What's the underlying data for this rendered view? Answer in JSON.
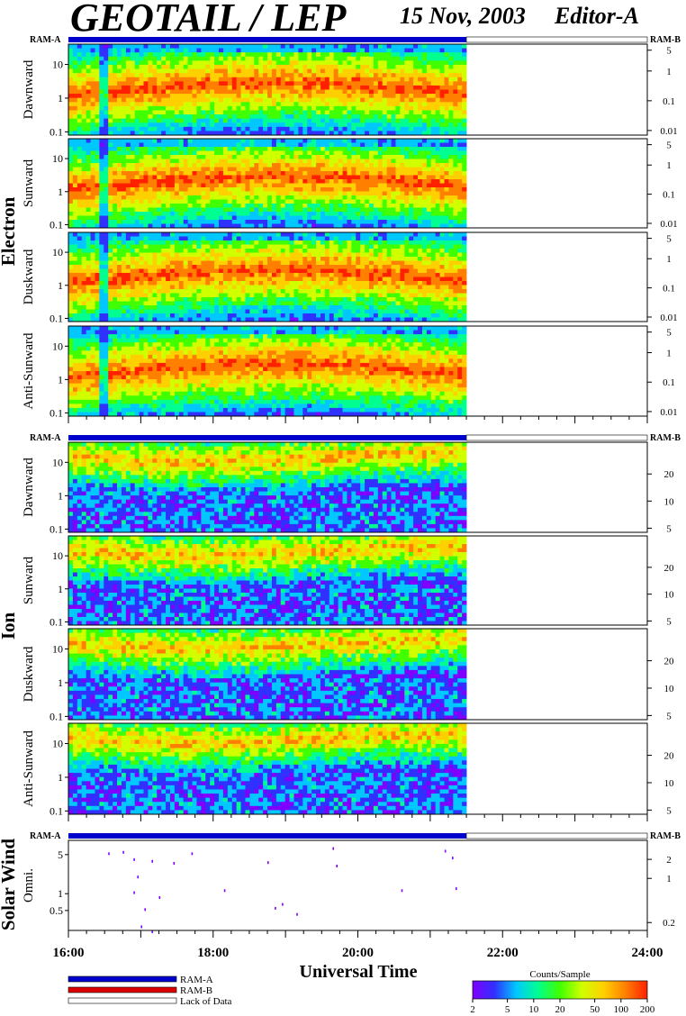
{
  "header": {
    "title": "GEOTAIL / LEP",
    "date": "15 Nov, 2003",
    "editor": "Editor-A"
  },
  "ram_labels": {
    "ram_a": "RAM-A",
    "ram_b": "RAM-B"
  },
  "sections": {
    "electron": "Electron",
    "ion": "Ion",
    "solar_wind": "Solar Wind"
  },
  "colors": {
    "ram_a_bar": "#0000cc",
    "ram_b_bar": "#dd0000",
    "lack_of_data": "#ffffff",
    "colorbar_stops": [
      "#8000ff",
      "#3030ff",
      "#00c8ff",
      "#00ff90",
      "#40ff00",
      "#d0ff00",
      "#ffd000",
      "#ff8000",
      "#ff2000"
    ]
  },
  "chart_data": {
    "type": "heatmap",
    "xlabel": "Universal Time",
    "x_ticks": [
      "16:00",
      "18:00",
      "20:00",
      "22:00",
      "24:00"
    ],
    "x_range_hours": [
      16,
      24
    ],
    "data_end_hour": 21.5,
    "panels": [
      {
        "group": "electron",
        "label": "Dawnward",
        "left_ticks": [
          "10",
          "1",
          "0.1"
        ],
        "left_range": [
          0.08,
          40
        ],
        "right_ticks": [
          "5",
          "1",
          "0.1",
          "0.01"
        ],
        "right_range": [
          0.007,
          8
        ]
      },
      {
        "group": "electron",
        "label": "Sunward",
        "left_ticks": [
          "10",
          "1",
          "0.1"
        ],
        "left_range": [
          0.08,
          40
        ],
        "right_ticks": [
          "5",
          "1",
          "0.1",
          "0.01"
        ],
        "right_range": [
          0.007,
          8
        ]
      },
      {
        "group": "electron",
        "label": "Duskward",
        "left_ticks": [
          "10",
          "1",
          "0.1"
        ],
        "left_range": [
          0.08,
          40
        ],
        "right_ticks": [
          "5",
          "1",
          "0.1",
          "0.01"
        ],
        "right_range": [
          0.007,
          8
        ]
      },
      {
        "group": "electron",
        "label": "Anti-Sunward",
        "left_ticks": [
          "10",
          "1",
          "0.1"
        ],
        "left_range": [
          0.08,
          40
        ],
        "right_ticks": [
          "5",
          "1",
          "0.1",
          "0.01"
        ],
        "right_range": [
          0.007,
          8
        ]
      },
      {
        "group": "ion",
        "label": "Dawnward",
        "left_ticks": [
          "10",
          "1",
          "0.1"
        ],
        "left_range": [
          0.08,
          40
        ],
        "right_ticks": [
          "20",
          "10",
          "5"
        ],
        "right_range": [
          4.5,
          45
        ]
      },
      {
        "group": "ion",
        "label": "Sunward",
        "left_ticks": [
          "10",
          "1",
          "0.1"
        ],
        "left_range": [
          0.08,
          40
        ],
        "right_ticks": [
          "20",
          "10",
          "5"
        ],
        "right_range": [
          4.5,
          45
        ]
      },
      {
        "group": "ion",
        "label": "Duskward",
        "left_ticks": [
          "10",
          "1",
          "0.1"
        ],
        "left_range": [
          0.08,
          40
        ],
        "right_ticks": [
          "20",
          "10",
          "5"
        ],
        "right_range": [
          4.5,
          45
        ]
      },
      {
        "group": "ion",
        "label": "Anti-Sunward",
        "left_ticks": [
          "10",
          "1",
          "0.1"
        ],
        "left_range": [
          0.08,
          40
        ],
        "right_ticks": [
          "20",
          "10",
          "5"
        ],
        "right_range": [
          4.5,
          45
        ]
      },
      {
        "group": "solar_wind",
        "label": "Omni.",
        "left_ticks": [
          "5",
          "1",
          "0.5"
        ],
        "left_range": [
          0.22,
          9
        ],
        "right_ticks": [
          "2",
          "1",
          "0.2"
        ],
        "right_range": [
          0.15,
          4
        ]
      }
    ],
    "solar_wind_points": [
      [
        16.55,
        5.5
      ],
      [
        16.75,
        5.8
      ],
      [
        16.9,
        4.3
      ],
      [
        16.95,
        2.1
      ],
      [
        16.9,
        1.1
      ],
      [
        17.05,
        0.55
      ],
      [
        17.15,
        4
      ],
      [
        17.25,
        0.9
      ],
      [
        17.45,
        3.7
      ],
      [
        17.7,
        5.5
      ],
      [
        18.15,
        1.2
      ],
      [
        18.75,
        3.8
      ],
      [
        18.85,
        0.58
      ],
      [
        18.95,
        0.68
      ],
      [
        19.15,
        0.45
      ],
      [
        19.65,
        6.8
      ],
      [
        19.7,
        3.3
      ],
      [
        20.6,
        1.2
      ],
      [
        21.2,
        6.1
      ],
      [
        21.3,
        4.6
      ],
      [
        21.35,
        1.3
      ],
      [
        17.0,
        0.27
      ],
      [
        17.15,
        0.22
      ]
    ],
    "colorbar": {
      "title": "Counts/Sample",
      "ticks": [
        "2",
        "5",
        "10",
        "20",
        "50",
        "100",
        "200"
      ],
      "range": [
        2,
        200
      ]
    }
  },
  "legend": [
    {
      "label": "RAM-A",
      "color": "#0000cc"
    },
    {
      "label": "RAM-B",
      "color": "#dd0000"
    },
    {
      "label": "Lack of Data",
      "color": "#ffffff"
    }
  ]
}
